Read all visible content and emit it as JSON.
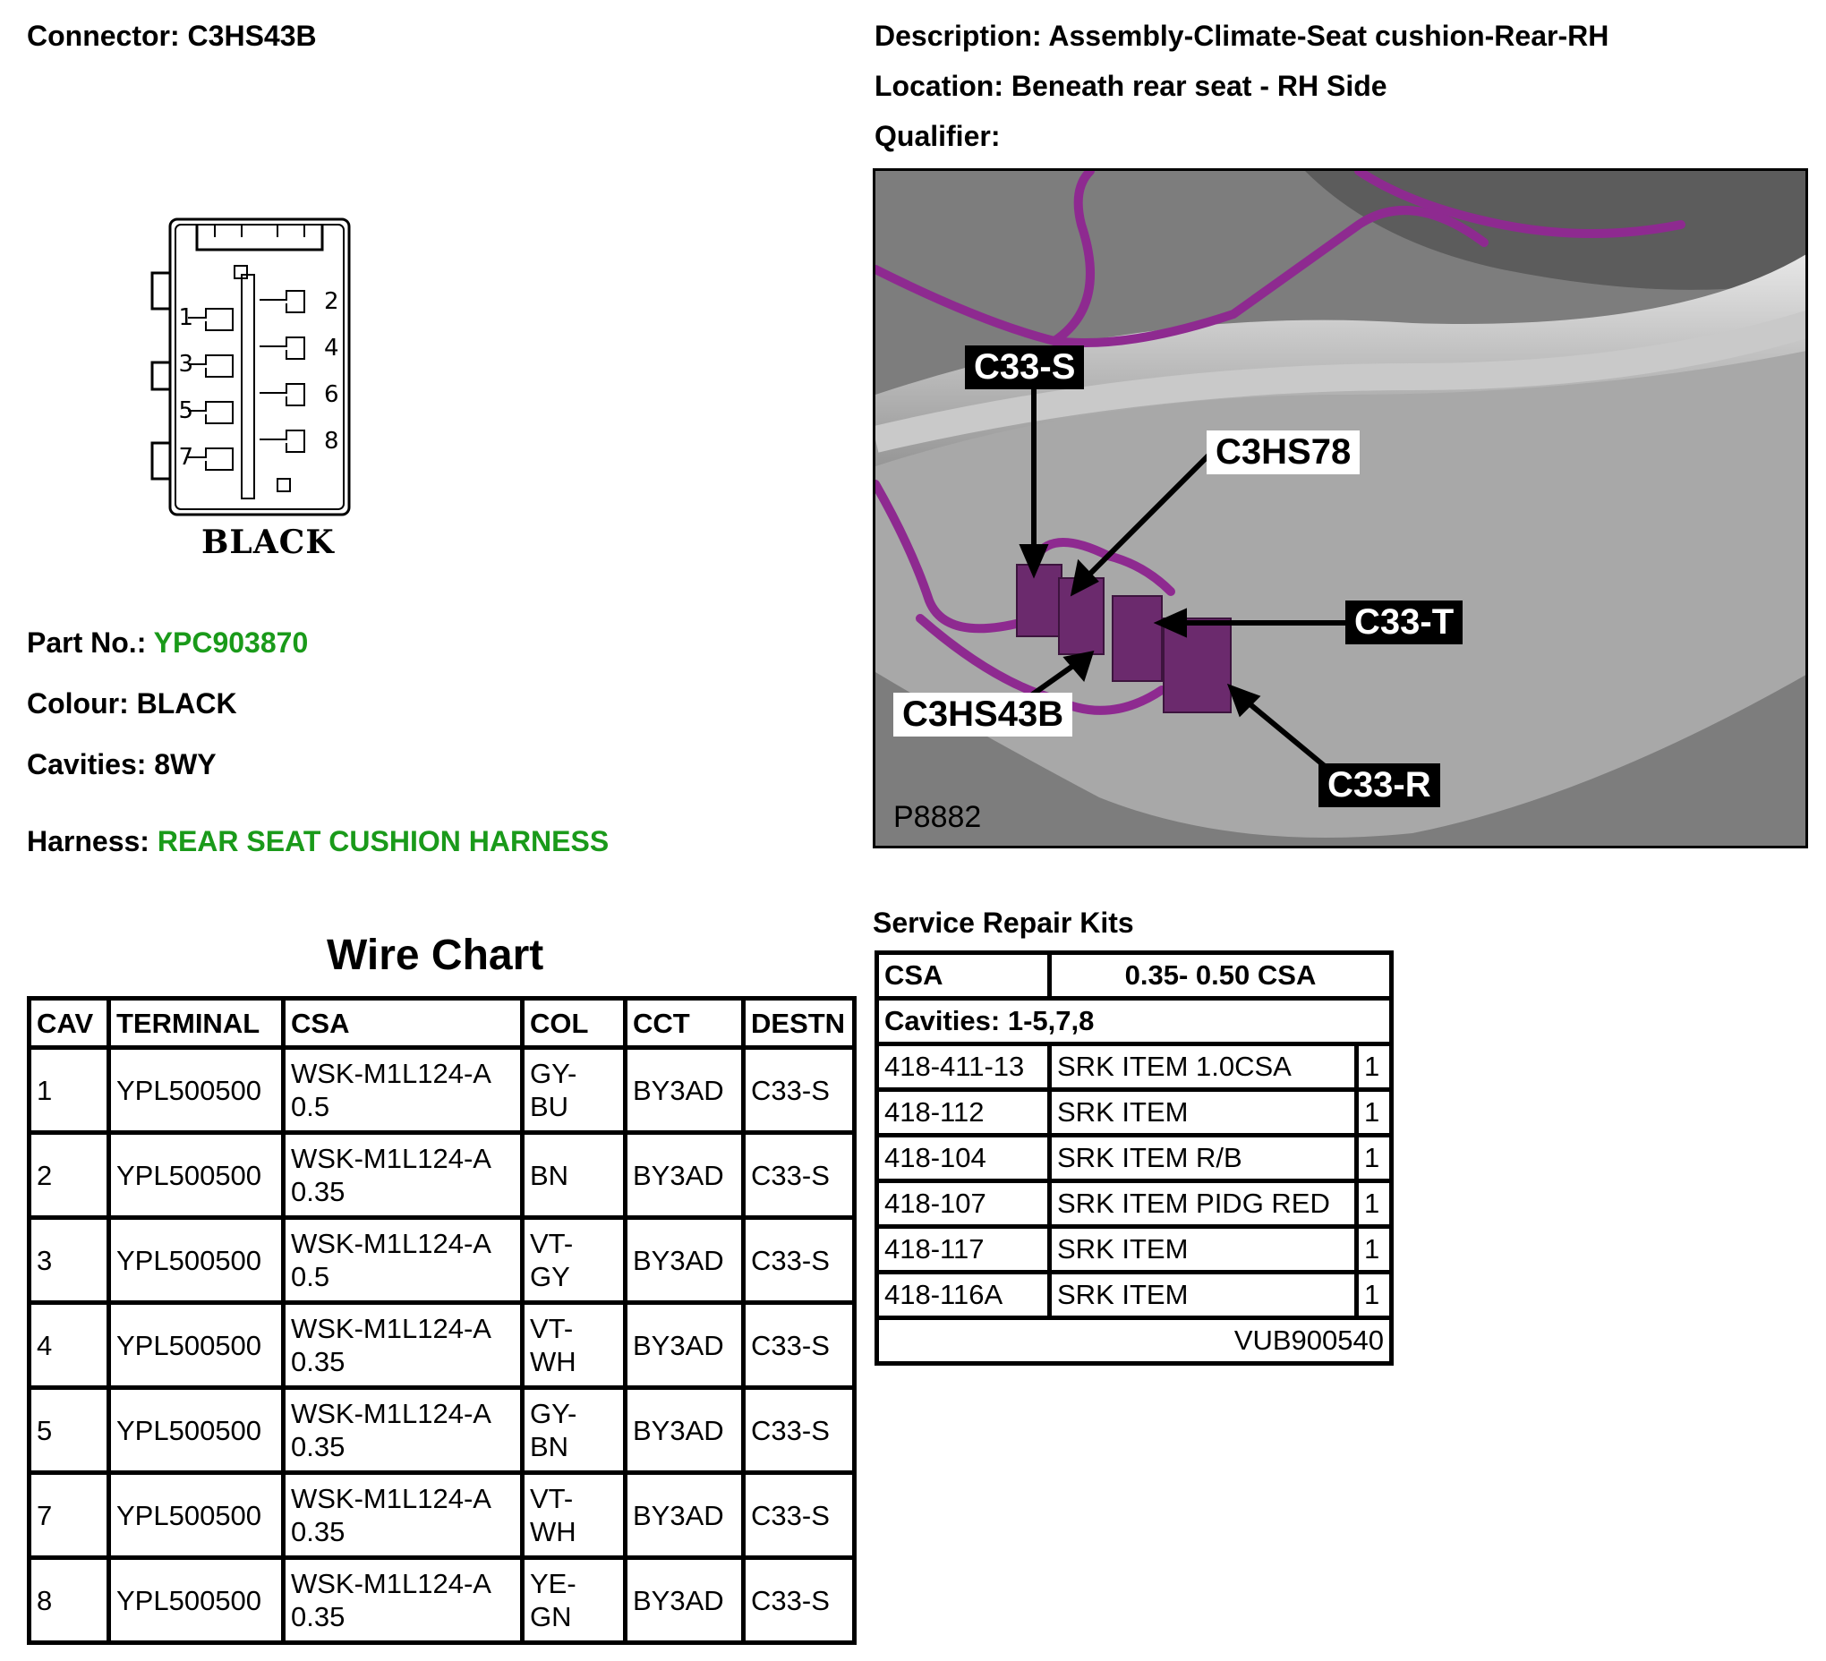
{
  "connector": {
    "label": "Connector:",
    "value": "C3HS43B"
  },
  "description": {
    "label": "Description:",
    "value": "Assembly-Climate-Seat cushion-Rear-RH"
  },
  "location": {
    "label": "Location:",
    "value": "Beneath rear seat - RH Side"
  },
  "qualifier": {
    "label": "Qualifier:",
    "value": ""
  },
  "connector_face": {
    "colour_text": "BLACK",
    "pins_left": [
      "1",
      "3",
      "5",
      "7"
    ],
    "pins_right": [
      "2",
      "4",
      "6",
      "8"
    ]
  },
  "part_no": {
    "label": "Part No.:",
    "value": "YPC903870"
  },
  "colour": {
    "label": "Colour:",
    "value": "BLACK"
  },
  "cavities": {
    "label": "Cavities:",
    "value": "8WY"
  },
  "harness": {
    "label": "Harness:",
    "value": "REAR SEAT CUSHION HARNESS"
  },
  "photo": {
    "ref": "P8882",
    "callouts": [
      "C33-S",
      "C3HS78",
      "C33-T",
      "C3HS43B",
      "C33-R"
    ]
  },
  "wire_chart": {
    "title": "Wire Chart",
    "headers": [
      "CAV",
      "TERMINAL",
      "CSA",
      "COL",
      "CCT",
      "DESTN"
    ],
    "rows": [
      [
        "1",
        "YPL500500",
        "WSK-M1L124-A\n0.5",
        "GY-\nBU",
        "BY3AD",
        "C33-S"
      ],
      [
        "2",
        "YPL500500",
        "WSK-M1L124-A\n0.35",
        "BN",
        "BY3AD",
        "C33-S"
      ],
      [
        "3",
        "YPL500500",
        "WSK-M1L124-A\n0.5",
        "VT-\nGY",
        "BY3AD",
        "C33-S"
      ],
      [
        "4",
        "YPL500500",
        "WSK-M1L124-A\n0.35",
        "VT-\nWH",
        "BY3AD",
        "C33-S"
      ],
      [
        "5",
        "YPL500500",
        "WSK-M1L124-A\n0.35",
        "GY-\nBN",
        "BY3AD",
        "C33-S"
      ],
      [
        "7",
        "YPL500500",
        "WSK-M1L124-A\n0.35",
        "VT-\nWH",
        "BY3AD",
        "C33-S"
      ],
      [
        "8",
        "YPL500500",
        "WSK-M1L124-A\n0.35",
        "YE-\nGN",
        "BY3AD",
        "C33-S"
      ]
    ]
  },
  "service_repair_kits": {
    "title": "Service Repair Kits",
    "csa_label": "CSA",
    "csa_value": "0.35- 0.50 CSA",
    "cavities": "Cavities: 1-5,7,8",
    "items": [
      {
        "code": "418-411-13",
        "desc": "SRK ITEM 1.0CSA",
        "qty": "1"
      },
      {
        "code": "418-112",
        "desc": "SRK ITEM",
        "qty": "1"
      },
      {
        "code": "418-104",
        "desc": "SRK ITEM R/B",
        "qty": "1"
      },
      {
        "code": "418-107",
        "desc": "SRK ITEM PIDG RED",
        "qty": "1"
      },
      {
        "code": "418-117",
        "desc": "SRK ITEM",
        "qty": "1"
      },
      {
        "code": "418-116A",
        "desc": "SRK ITEM",
        "qty": "1"
      }
    ],
    "footer": "VUB900540"
  },
  "colors": {
    "link_green": "#1a9a1a",
    "harness_purple": "#8e2a90"
  }
}
